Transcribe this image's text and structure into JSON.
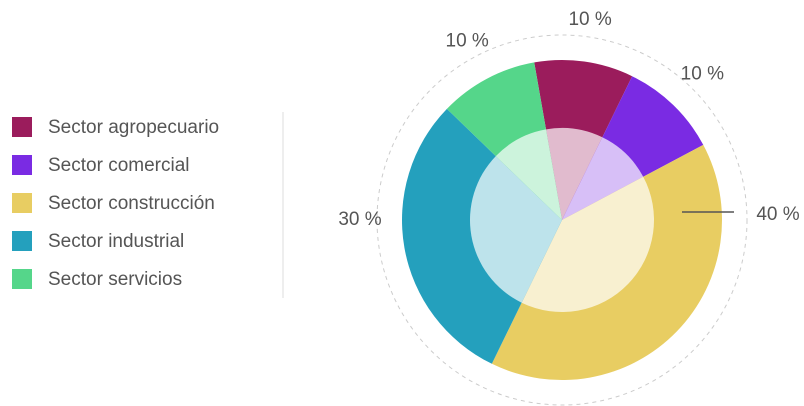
{
  "chart_data": {
    "type": "pie",
    "categories": [
      "Sector agropecuario",
      "Sector comercial",
      "Sector construcción",
      "Sector industrial",
      "Sector servicios"
    ],
    "values": [
      10,
      10,
      40,
      30,
      10
    ],
    "value_labels": [
      "10 %",
      "10 %",
      "40 %",
      "30 %",
      "10 %"
    ],
    "colors": [
      "#9b1c5c",
      "#7a2be3",
      "#e8cd62",
      "#24a0bd",
      "#55d68a"
    ],
    "legend": "left"
  }
}
